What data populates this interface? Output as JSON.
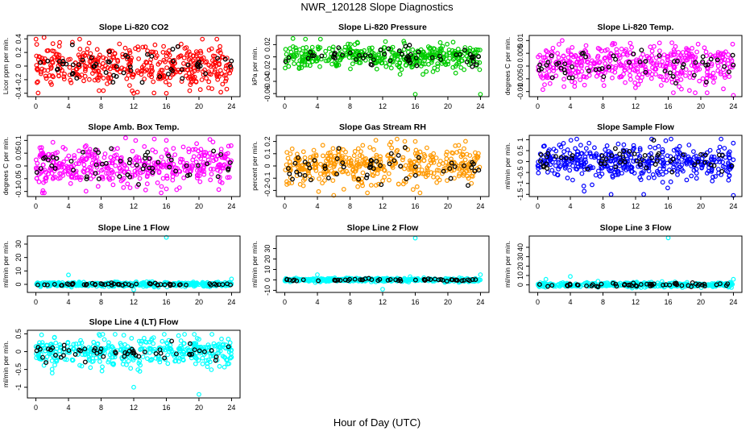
{
  "figure": {
    "title": "NWR_120128  Slope Diagnostics",
    "xlabel": "Hour of Day (UTC)"
  },
  "chart_data": [
    {
      "type": "scatter",
      "title": "Slope Li-820 CO2",
      "ylabel": "Licor ppm per min.",
      "color": "#ff0000",
      "xlim": [
        0,
        24
      ],
      "ylim": [
        -0.45,
        0.45
      ],
      "yticks": [
        -0.4,
        -0.2,
        0.0,
        0.2,
        0.4
      ],
      "xticks": [
        0,
        4,
        8,
        12,
        16,
        20,
        24
      ],
      "base_sd": 0.15,
      "hi_sd": 0.13,
      "outliers": [
        [
          1.0,
          0.42
        ],
        [
          16.0,
          -0.4
        ],
        [
          12.0,
          -0.4
        ]
      ]
    },
    {
      "type": "scatter",
      "title": "Slope Li-820 Pressure",
      "ylabel": "kPa per min.",
      "color": "#00cc00",
      "xlim": [
        0,
        24
      ],
      "ylim": [
        -0.065,
        0.035
      ],
      "yticks": [
        -0.06,
        -0.04,
        -0.02,
        0.0,
        0.02
      ],
      "xticks": [
        0,
        4,
        8,
        12,
        16,
        20,
        24
      ],
      "base_sd": 0.01,
      "hi_sd": 0.008,
      "outliers": [
        [
          16.0,
          -0.061
        ],
        [
          24.0,
          -0.061
        ],
        [
          1.0,
          0.03
        ]
      ]
    },
    {
      "type": "scatter",
      "title": "Slope Li-820 Temp.",
      "ylabel": "degrees C per min.",
      "color": "#ff00ff",
      "xlim": [
        0,
        24
      ],
      "ylim": [
        -0.012,
        0.012
      ],
      "yticks": [
        -0.01,
        -0.005,
        0.0,
        0.005,
        0.01
      ],
      "xticks": [
        0,
        4,
        8,
        12,
        16,
        20,
        24
      ],
      "base_sd": 0.004,
      "hi_sd": 0.003,
      "outliers": [
        [
          24.0,
          -0.0115
        ],
        [
          3.0,
          0.01
        ]
      ]
    },
    {
      "type": "scatter",
      "title": "Slope Amb. Box Temp.",
      "ylabel": "degrees C per min.",
      "color": "#ff00ff",
      "xlim": [
        0,
        24
      ],
      "ylim": [
        -0.12,
        0.12
      ],
      "yticks": [
        -0.1,
        -0.05,
        0.0,
        0.05,
        0.1
      ],
      "xticks": [
        0,
        4,
        8,
        12,
        16,
        20,
        24
      ],
      "base_sd": 0.04,
      "hi_sd": 0.035,
      "outliers": [
        [
          11.0,
          0.11
        ],
        [
          16.0,
          0.1
        ],
        [
          16.0,
          -0.09
        ]
      ]
    },
    {
      "type": "scatter",
      "title": "Slope Gas Stream RH",
      "ylabel": "percent per min.",
      "color": "#ff9900",
      "xlim": [
        0,
        24
      ],
      "ylim": [
        -0.25,
        0.25
      ],
      "yticks": [
        -0.2,
        -0.1,
        0.0,
        0.1,
        0.2
      ],
      "xticks": [
        0,
        4,
        8,
        12,
        16,
        20,
        24
      ],
      "base_sd": 0.08,
      "hi_sd": 0.06,
      "outliers": [
        [
          6.0,
          -0.24
        ],
        [
          16.0,
          0.2
        ]
      ]
    },
    {
      "type": "scatter",
      "title": "Slope Sample Flow",
      "ylabel": "ml/min per min.",
      "color": "#0000ff",
      "xlim": [
        0,
        24
      ],
      "ylim": [
        -1.6,
        1.2
      ],
      "yticks": [
        -1.5,
        -1.0,
        -0.5,
        0.0,
        0.5,
        1.0
      ],
      "xticks": [
        0,
        4,
        8,
        12,
        16,
        20,
        24
      ],
      "base_sd": 0.4,
      "hi_sd": 0.3,
      "outliers": [
        [
          24.0,
          -1.55
        ],
        [
          13.0,
          -1.5
        ],
        [
          9.0,
          -1.5
        ]
      ]
    },
    {
      "type": "scatter",
      "title": "Slope Line 1 Flow",
      "ylabel": "ml/min per min.",
      "color": "#00ffff",
      "xlim": [
        0,
        24
      ],
      "ylim": [
        -6,
        36
      ],
      "yticks": [
        0,
        10,
        20,
        30
      ],
      "xticks": [
        0,
        4,
        8,
        12,
        16,
        20,
        24
      ],
      "base_sd": 0.8,
      "hi_sd": 0.6,
      "outliers": [
        [
          16.0,
          35
        ],
        [
          4.0,
          7
        ],
        [
          12.0,
          -4
        ],
        [
          24.0,
          4
        ]
      ]
    },
    {
      "type": "scatter",
      "title": "Slope Line 2 Flow",
      "ylabel": "ml/min per min.",
      "color": "#00ffff",
      "xlim": [
        0,
        24
      ],
      "ylim": [
        -12,
        42
      ],
      "yticks": [
        -10,
        0,
        10,
        20,
        30
      ],
      "xticks": [
        0,
        4,
        8,
        12,
        16,
        20,
        24
      ],
      "base_sd": 0.8,
      "hi_sd": 0.6,
      "outliers": [
        [
          16.0,
          40
        ],
        [
          4.0,
          5
        ],
        [
          12.0,
          -9
        ],
        [
          24.0,
          5
        ]
      ]
    },
    {
      "type": "scatter",
      "title": "Slope Line 3 Flow",
      "ylabel": "ml/min per min.",
      "color": "#00ffff",
      "xlim": [
        0,
        24
      ],
      "ylim": [
        -8,
        52
      ],
      "yticks": [
        0,
        10,
        20,
        30,
        40
      ],
      "xticks": [
        0,
        4,
        8,
        12,
        16,
        20,
        24
      ],
      "base_sd": 1.2,
      "hi_sd": 1.0,
      "outliers": [
        [
          16.0,
          50
        ],
        [
          4.0,
          9
        ],
        [
          1.0,
          6
        ],
        [
          24.0,
          6
        ]
      ]
    },
    {
      "type": "scatter",
      "title": "Slope Line 4 (LT) Flow",
      "ylabel": "ml/min per min.",
      "color": "#00ffff",
      "xlim": [
        0,
        24
      ],
      "ylim": [
        -1.3,
        0.6
      ],
      "yticks": [
        -1.0,
        -0.5,
        0.0,
        0.5
      ],
      "xticks": [
        0,
        4,
        8,
        12,
        16,
        20,
        24
      ],
      "base_sd": 0.2,
      "hi_sd": 0.12,
      "outliers": [
        [
          12.0,
          -1.0
        ],
        [
          20.0,
          -1.2
        ],
        [
          2.0,
          -0.6
        ]
      ]
    }
  ]
}
